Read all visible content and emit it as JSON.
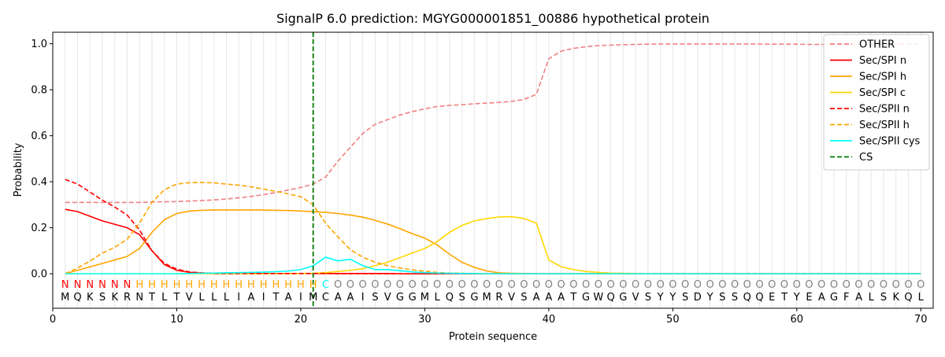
{
  "chart_data": {
    "type": "line",
    "title": "SignalP 6.0 prediction: MGYG000001851_00886 hypothetical protein",
    "xlabel": "Protein sequence",
    "ylabel": "Probability",
    "xlim": [
      0,
      71
    ],
    "ylim": [
      -0.15,
      1.05
    ],
    "x_ticks": [
      0,
      10,
      20,
      30,
      40,
      50,
      60,
      70
    ],
    "y_ticks": [
      0.0,
      0.2,
      0.4,
      0.6,
      0.8,
      1.0
    ],
    "grid": "vertical lines at each residue",
    "legend_position": "top-right",
    "cleavage_site": {
      "name": "CS",
      "x": 21,
      "color": "#007a00"
    },
    "sequence": "MQKSKRNTLTVLLLIAITAIMCAAISVGGMLQSGMRVSAAATGWQGVSYYSDYSSQQETYEAGFALSKQL",
    "region_labels": "NNNNNNHHHHHHHHHHHHHHHCOOOOOOOOOOOOOOOOOOOOOOOOOOOOOOOOOOOOOOOOOOOOOOOOO",
    "region_colors": {
      "N": "#ff0000",
      "H": "#ffa500",
      "C": "#00ffff",
      "O": "#808080"
    },
    "x": [
      1,
      2,
      3,
      4,
      5,
      6,
      7,
      8,
      9,
      10,
      11,
      12,
      13,
      14,
      15,
      16,
      17,
      18,
      19,
      20,
      21,
      22,
      23,
      24,
      25,
      26,
      27,
      28,
      29,
      30,
      31,
      32,
      33,
      34,
      35,
      36,
      37,
      38,
      39,
      40,
      41,
      42,
      43,
      44,
      45,
      46,
      47,
      48,
      49,
      50,
      51,
      52,
      53,
      54,
      55,
      56,
      57,
      58,
      59,
      60,
      61,
      62,
      63,
      64,
      65,
      66,
      67,
      68,
      69,
      70
    ],
    "series": [
      {
        "name": "OTHER",
        "color": "#f08080",
        "dash": true,
        "values": [
          0.31,
          0.31,
          0.31,
          0.31,
          0.31,
          0.31,
          0.31,
          0.312,
          0.313,
          0.314,
          0.316,
          0.318,
          0.321,
          0.325,
          0.33,
          0.336,
          0.344,
          0.353,
          0.364,
          0.375,
          0.39,
          0.42,
          0.49,
          0.55,
          0.61,
          0.65,
          0.67,
          0.69,
          0.705,
          0.717,
          0.727,
          0.732,
          0.735,
          0.739,
          0.742,
          0.745,
          0.749,
          0.758,
          0.78,
          0.935,
          0.968,
          0.98,
          0.987,
          0.992,
          0.994,
          0.996,
          0.997,
          0.998,
          0.999,
          0.999,
          0.999,
          0.999,
          0.999,
          0.999,
          0.999,
          0.999,
          0.999,
          0.998,
          0.998,
          0.998,
          0.997,
          0.997,
          0.997,
          0.997,
          0.997,
          0.998,
          0.998,
          0.998,
          0.998,
          0.998
        ]
      },
      {
        "name": "Sec/SPI n",
        "color": "#ff0000",
        "dash": false,
        "values": [
          0.28,
          0.27,
          0.25,
          0.23,
          0.215,
          0.2,
          0.17,
          0.1,
          0.04,
          0.015,
          0.006,
          0.003,
          0.002,
          0.001,
          0.001,
          0.001,
          0.001,
          0.001,
          0.001,
          0.001,
          0.001,
          0.001,
          0.001,
          0.001,
          0.001,
          0.001,
          0.001,
          0,
          0,
          0,
          0,
          0,
          0,
          0,
          0,
          0,
          0,
          0,
          0,
          0,
          0,
          0,
          0,
          0,
          0,
          0,
          0,
          0,
          0,
          0,
          0,
          0,
          0,
          0,
          0,
          0,
          0,
          0,
          0,
          0,
          0,
          0,
          0,
          0,
          0,
          0,
          0,
          0,
          0,
          0
        ]
      },
      {
        "name": "Sec/SPI h",
        "color": "#ffa500",
        "dash": false,
        "values": [
          0,
          0.015,
          0.03,
          0.045,
          0.06,
          0.075,
          0.11,
          0.18,
          0.235,
          0.262,
          0.272,
          0.276,
          0.277,
          0.277,
          0.277,
          0.277,
          0.277,
          0.276,
          0.275,
          0.273,
          0.27,
          0.267,
          0.262,
          0.255,
          0.246,
          0.232,
          0.216,
          0.196,
          0.174,
          0.155,
          0.125,
          0.085,
          0.05,
          0.028,
          0.012,
          0.004,
          0.002,
          0.001,
          0,
          0,
          0,
          0,
          0,
          0,
          0,
          0,
          0,
          0,
          0,
          0,
          0,
          0,
          0,
          0,
          0,
          0,
          0,
          0,
          0,
          0,
          0,
          0,
          0,
          0,
          0,
          0,
          0,
          0,
          0,
          0
        ]
      },
      {
        "name": "Sec/SPI c",
        "color": "#ffd700",
        "dash": false,
        "values": [
          0,
          0,
          0,
          0,
          0,
          0,
          0,
          0,
          0,
          0,
          0,
          0,
          0,
          0,
          0,
          0,
          0,
          0,
          0,
          0.001,
          0.002,
          0.005,
          0.01,
          0.015,
          0.022,
          0.035,
          0.05,
          0.07,
          0.09,
          0.11,
          0.14,
          0.18,
          0.21,
          0.23,
          0.24,
          0.247,
          0.248,
          0.24,
          0.22,
          0.06,
          0.03,
          0.018,
          0.01,
          0.006,
          0.003,
          0.002,
          0.001,
          0,
          0,
          0,
          0,
          0,
          0,
          0,
          0,
          0,
          0,
          0,
          0,
          0,
          0,
          0,
          0,
          0,
          0,
          0,
          0,
          0,
          0,
          0
        ]
      },
      {
        "name": "Sec/SPII n",
        "color": "#ff0000",
        "dash": true,
        "values": [
          0.41,
          0.39,
          0.355,
          0.32,
          0.29,
          0.255,
          0.19,
          0.1,
          0.045,
          0.02,
          0.008,
          0.004,
          0.002,
          0.001,
          0.001,
          0.001,
          0.001,
          0.001,
          0.001,
          0.001,
          0.001,
          0.001,
          0,
          0,
          0,
          0,
          0,
          0,
          0,
          0,
          0,
          0,
          0,
          0,
          0,
          0,
          0,
          0,
          0,
          0,
          0,
          0,
          0,
          0,
          0,
          0,
          0,
          0,
          0,
          0,
          0,
          0,
          0,
          0,
          0,
          0,
          0,
          0,
          0,
          0,
          0,
          0,
          0,
          0,
          0,
          0,
          0,
          0,
          0,
          0
        ]
      },
      {
        "name": "Sec/SPII h",
        "color": "#ffa500",
        "dash": true,
        "values": [
          0,
          0.025,
          0.055,
          0.09,
          0.115,
          0.15,
          0.22,
          0.31,
          0.365,
          0.39,
          0.396,
          0.397,
          0.395,
          0.39,
          0.385,
          0.378,
          0.368,
          0.358,
          0.347,
          0.335,
          0.3,
          0.22,
          0.16,
          0.105,
          0.072,
          0.05,
          0.035,
          0.025,
          0.017,
          0.011,
          0.006,
          0.003,
          0.002,
          0.001,
          0,
          0,
          0,
          0,
          0,
          0,
          0,
          0,
          0,
          0,
          0,
          0,
          0,
          0,
          0,
          0,
          0,
          0,
          0,
          0,
          0,
          0,
          0,
          0,
          0,
          0,
          0,
          0,
          0,
          0,
          0,
          0,
          0,
          0,
          0,
          0
        ]
      },
      {
        "name": "Sec/SPII cys",
        "color": "#00ffff",
        "dash": false,
        "values": [
          0,
          0,
          0,
          0,
          0,
          0,
          0,
          0,
          0,
          0,
          0.001,
          0.002,
          0.003,
          0.004,
          0.005,
          0.006,
          0.007,
          0.009,
          0.012,
          0.018,
          0.035,
          0.072,
          0.056,
          0.063,
          0.035,
          0.018,
          0.018,
          0.013,
          0.008,
          0.005,
          0.003,
          0.002,
          0.001,
          0.001,
          0,
          0,
          0,
          0,
          0,
          0,
          0,
          0,
          0,
          0,
          0,
          0,
          0,
          0,
          0,
          0,
          0,
          0,
          0,
          0,
          0,
          0,
          0,
          0,
          0,
          0,
          0,
          0,
          0,
          0,
          0,
          0,
          0,
          0,
          0,
          0
        ]
      }
    ],
    "legend": [
      "OTHER",
      "Sec/SPI n",
      "Sec/SPI h",
      "Sec/SPI c",
      "Sec/SPII n",
      "Sec/SPII h",
      "Sec/SPII cys",
      "CS"
    ]
  }
}
